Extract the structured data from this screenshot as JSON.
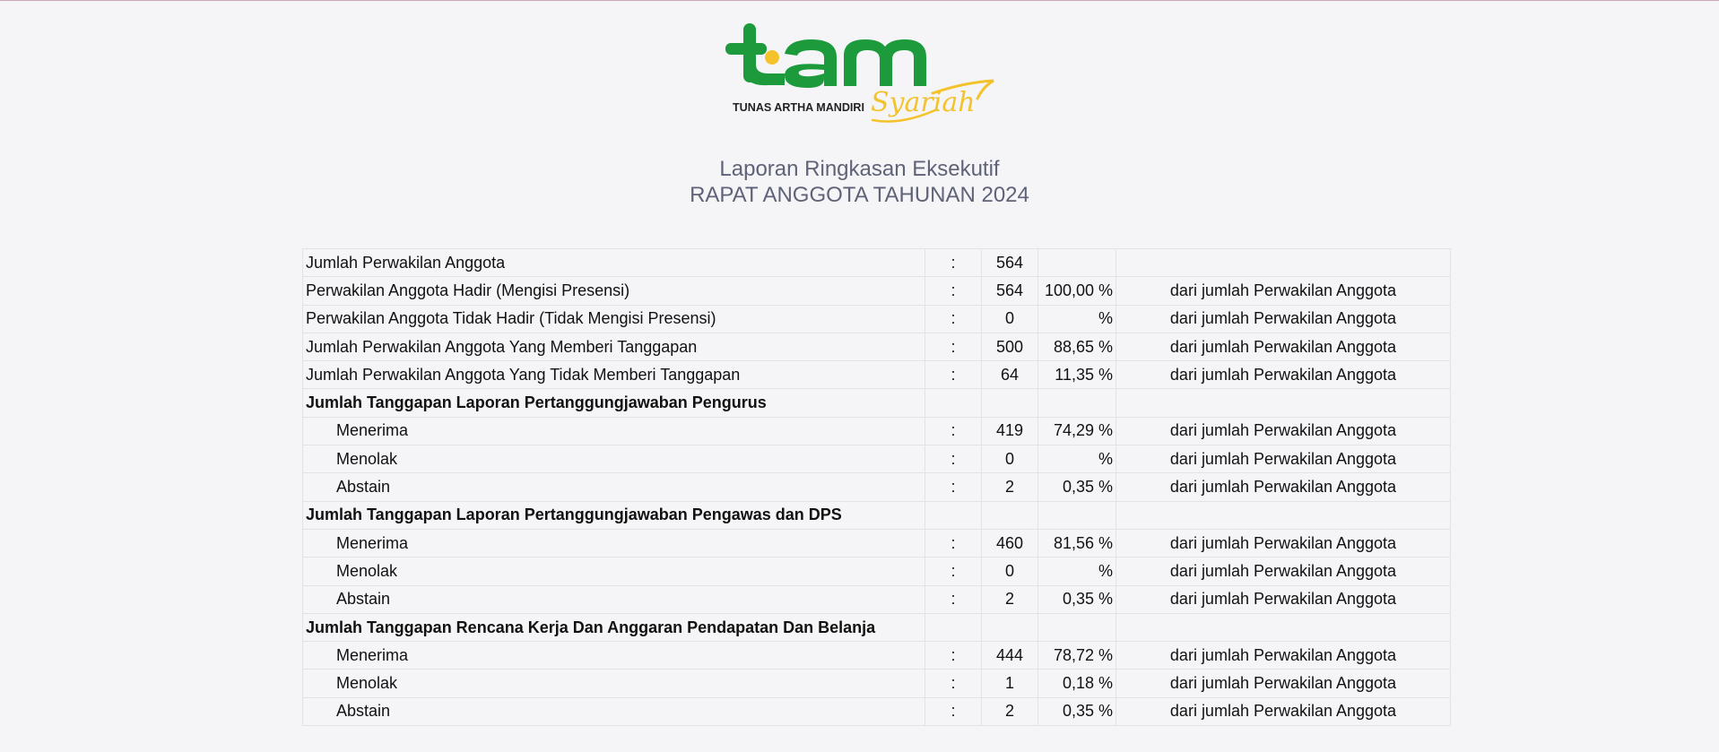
{
  "logo": {
    "brand": "tam",
    "tagline": "TUNAS ARTHA MANDIRI",
    "script": "Syariah",
    "colors": {
      "green": "#1c9a3c",
      "yellow": "#f4c22b",
      "dark": "#222222"
    }
  },
  "header": {
    "title": "Laporan Ringkasan Eksekutif",
    "subtitle": "RAPAT ANGGOTA TAHUNAN 2024"
  },
  "rows": [
    {
      "label": "Jumlah Perwakilan Anggota",
      "colon": ":",
      "value": "564",
      "pct": "",
      "note": "",
      "kind": "main"
    },
    {
      "label": "Perwakilan Anggota Hadir (Mengisi Presensi)",
      "colon": ":",
      "value": "564",
      "pct": "100,00 %",
      "note": "dari jumlah Perwakilan Anggota",
      "kind": "main"
    },
    {
      "label": "Perwakilan Anggota Tidak Hadir (Tidak Mengisi Presensi)",
      "colon": ":",
      "value": "0",
      "pct": "%",
      "note": "dari jumlah Perwakilan Anggota",
      "kind": "main"
    },
    {
      "label": "Jumlah Perwakilan Anggota Yang Memberi Tanggapan",
      "colon": ":",
      "value": "500",
      "pct": "88,65 %",
      "note": "dari jumlah Perwakilan Anggota",
      "kind": "main"
    },
    {
      "label": "Jumlah Perwakilan Anggota Yang Tidak Memberi Tanggapan",
      "colon": ":",
      "value": "64",
      "pct": "11,35 %",
      "note": "dari jumlah Perwakilan Anggota",
      "kind": "main"
    },
    {
      "label": "Jumlah Tanggapan Laporan Pertanggungjawaban Pengurus",
      "colon": "",
      "value": "",
      "pct": "",
      "note": "",
      "kind": "section"
    },
    {
      "label": "Menerima",
      "colon": ":",
      "value": "419",
      "pct": "74,29 %",
      "note": "dari jumlah Perwakilan Anggota",
      "kind": "sub"
    },
    {
      "label": "Menolak",
      "colon": ":",
      "value": "0",
      "pct": "%",
      "note": "dari jumlah Perwakilan Anggota",
      "kind": "sub"
    },
    {
      "label": "Abstain",
      "colon": ":",
      "value": "2",
      "pct": "0,35 %",
      "note": "dari jumlah Perwakilan Anggota",
      "kind": "sub"
    },
    {
      "label": "Jumlah Tanggapan Laporan Pertanggungjawaban Pengawas dan DPS",
      "colon": "",
      "value": "",
      "pct": "",
      "note": "",
      "kind": "section"
    },
    {
      "label": "Menerima",
      "colon": ":",
      "value": "460",
      "pct": "81,56 %",
      "note": "dari jumlah Perwakilan Anggota",
      "kind": "sub"
    },
    {
      "label": "Menolak",
      "colon": ":",
      "value": "0",
      "pct": "%",
      "note": "dari jumlah Perwakilan Anggota",
      "kind": "sub"
    },
    {
      "label": "Abstain",
      "colon": ":",
      "value": "2",
      "pct": "0,35 %",
      "note": "dari jumlah Perwakilan Anggota",
      "kind": "sub"
    },
    {
      "label": "Jumlah Tanggapan Rencana Kerja Dan Anggaran Pendapatan Dan Belanja",
      "colon": "",
      "value": "",
      "pct": "",
      "note": "",
      "kind": "section"
    },
    {
      "label": "Menerima",
      "colon": ":",
      "value": "444",
      "pct": "78,72 %",
      "note": "dari jumlah Perwakilan Anggota",
      "kind": "sub"
    },
    {
      "label": "Menolak",
      "colon": ":",
      "value": "1",
      "pct": "0,18 %",
      "note": "dari jumlah Perwakilan Anggota",
      "kind": "sub"
    },
    {
      "label": "Abstain",
      "colon": ":",
      "value": "2",
      "pct": "0,35 %",
      "note": "dari jumlah Perwakilan Anggota",
      "kind": "sub"
    }
  ]
}
